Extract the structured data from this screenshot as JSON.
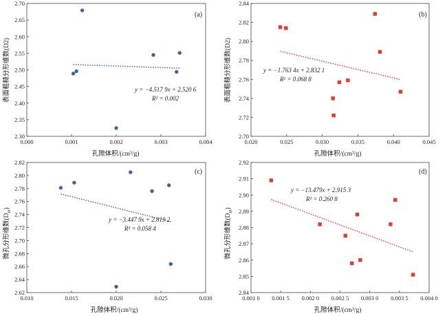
{
  "chart_data": [
    {
      "type": "scatter",
      "panel_label": "(a)",
      "xlabel": "孔隙体积/(cm³/g)",
      "ylabel": "表面粗糙分形维数(D2)",
      "xlim": [
        0,
        0.004
      ],
      "ylim": [
        2.3,
        2.7
      ],
      "xticks": [
        "0.000",
        "0.001",
        "0.002",
        "0.003",
        "0.004"
      ],
      "yticks": [
        "2.30",
        "2.35",
        "2.40",
        "2.45",
        "2.50",
        "2.55",
        "2.60",
        "2.65",
        "2.70"
      ],
      "marker": "circle",
      "color": "#3d63a6",
      "points": [
        [
          0.00104,
          2.489
        ],
        [
          0.00111,
          2.496
        ],
        [
          0.00124,
          2.679
        ],
        [
          0.002,
          2.325
        ],
        [
          0.00283,
          2.545
        ],
        [
          0.00335,
          2.494
        ],
        [
          0.00342,
          2.551
        ]
      ],
      "trend": {
        "x": [
          0.00104,
          0.00342
        ],
        "slope": -4.5179,
        "intercept": 2.5206,
        "color": "#3d63a6"
      },
      "equation": "y = −4.517 9x + 2.520 6",
      "r2": "R² = 0.002"
    },
    {
      "type": "scatter",
      "panel_label": "(b)",
      "xlabel": "孔隙体积/(cm³/g)",
      "ylabel": "表面粗糙分形维数(D2)",
      "xlim": [
        0.02,
        0.045
      ],
      "ylim": [
        2.7,
        2.84
      ],
      "xticks": [
        "0.020",
        "0.025",
        "0.030",
        "0.035",
        "0.040",
        "0.045"
      ],
      "yticks": [
        "2.70",
        "2.72",
        "2.74",
        "2.76",
        "2.78",
        "2.80",
        "2.82",
        "2.84"
      ],
      "marker": "square",
      "color": "#e03c31",
      "points": [
        [
          0.0241,
          2.815
        ],
        [
          0.0249,
          2.814
        ],
        [
          0.0315,
          2.74
        ],
        [
          0.0316,
          2.722
        ],
        [
          0.0324,
          2.757
        ],
        [
          0.0336,
          2.759
        ],
        [
          0.0374,
          2.829
        ],
        [
          0.0381,
          2.789
        ],
        [
          0.041,
          2.747
        ]
      ],
      "trend": {
        "x": [
          0.0241,
          0.041
        ],
        "slope": -1.7634,
        "intercept": 2.8321,
        "color": "#e03c31"
      },
      "equation": "y = −1.763 4x + 2.832 1",
      "r2": "R² = 0.068 8"
    },
    {
      "type": "scatter",
      "panel_label": "(c)",
      "xlabel": "孔隙体积/(cm³/g)",
      "ylabel": "微孔分形维数(Dm)",
      "ylabel_main": "微孔分形维数(D",
      "ylabel_sub": "m",
      "ylabel_end": ")",
      "xlim": [
        0.01,
        0.03
      ],
      "ylim": [
        2.62,
        2.82
      ],
      "xticks": [
        "0.010",
        "0.015",
        "0.020",
        "0.025",
        "0.030"
      ],
      "yticks": [
        "2.62",
        "2.64",
        "2.66",
        "2.68",
        "2.70",
        "2.72",
        "2.74",
        "2.76",
        "2.78",
        "2.80",
        "2.82"
      ],
      "marker": "circle",
      "color": "#3d63a6",
      "points": [
        [
          0.0138,
          2.781
        ],
        [
          0.0153,
          2.789
        ],
        [
          0.02,
          2.629
        ],
        [
          0.0216,
          2.805
        ],
        [
          0.024,
          2.776
        ],
        [
          0.0259,
          2.785
        ],
        [
          0.0261,
          2.664
        ]
      ],
      "trend": {
        "x": [
          0.0138,
          0.0261
        ],
        "slope": -3.4479,
        "intercept": 2.8192,
        "color": "#3d63a6"
      },
      "equation": "y = −3.447 9x + 2.819 2",
      "r2": "R² = 0.058 4"
    },
    {
      "type": "scatter",
      "panel_label": "(d)",
      "xlabel": "孔隙体积/(cm³/g)",
      "ylabel": "微孔分形维数(Dm)",
      "ylabel_main": "微孔分形维数(D",
      "ylabel_sub": "m",
      "ylabel_end": ")",
      "xlim": [
        0.001,
        0.004
      ],
      "ylim": [
        2.84,
        2.92
      ],
      "xticks": [
        "0.001 0",
        "0.001 5",
        "0.002 0",
        "0.002 5",
        "0.003 0",
        "0.003 5",
        "0.004 0"
      ],
      "yticks": [
        "2.84",
        "2.85",
        "2.86",
        "2.87",
        "2.88",
        "2.89",
        "2.90",
        "2.91",
        "2.92"
      ],
      "marker": "square",
      "color": "#e03c31",
      "points": [
        [
          0.00134,
          2.909
        ],
        [
          0.00216,
          2.882
        ],
        [
          0.00259,
          2.875
        ],
        [
          0.0027,
          2.858
        ],
        [
          0.00279,
          2.888
        ],
        [
          0.00284,
          2.86
        ],
        [
          0.00335,
          2.882
        ],
        [
          0.00343,
          2.897
        ],
        [
          0.00373,
          2.851
        ]
      ],
      "trend": {
        "x": [
          0.00134,
          0.00373
        ],
        "slope": -13.479,
        "intercept": 2.9153,
        "color": "#e03c31"
      },
      "equation": "y = −13.479x + 2.915 3",
      "r2": "R² = 0.260 8"
    }
  ]
}
